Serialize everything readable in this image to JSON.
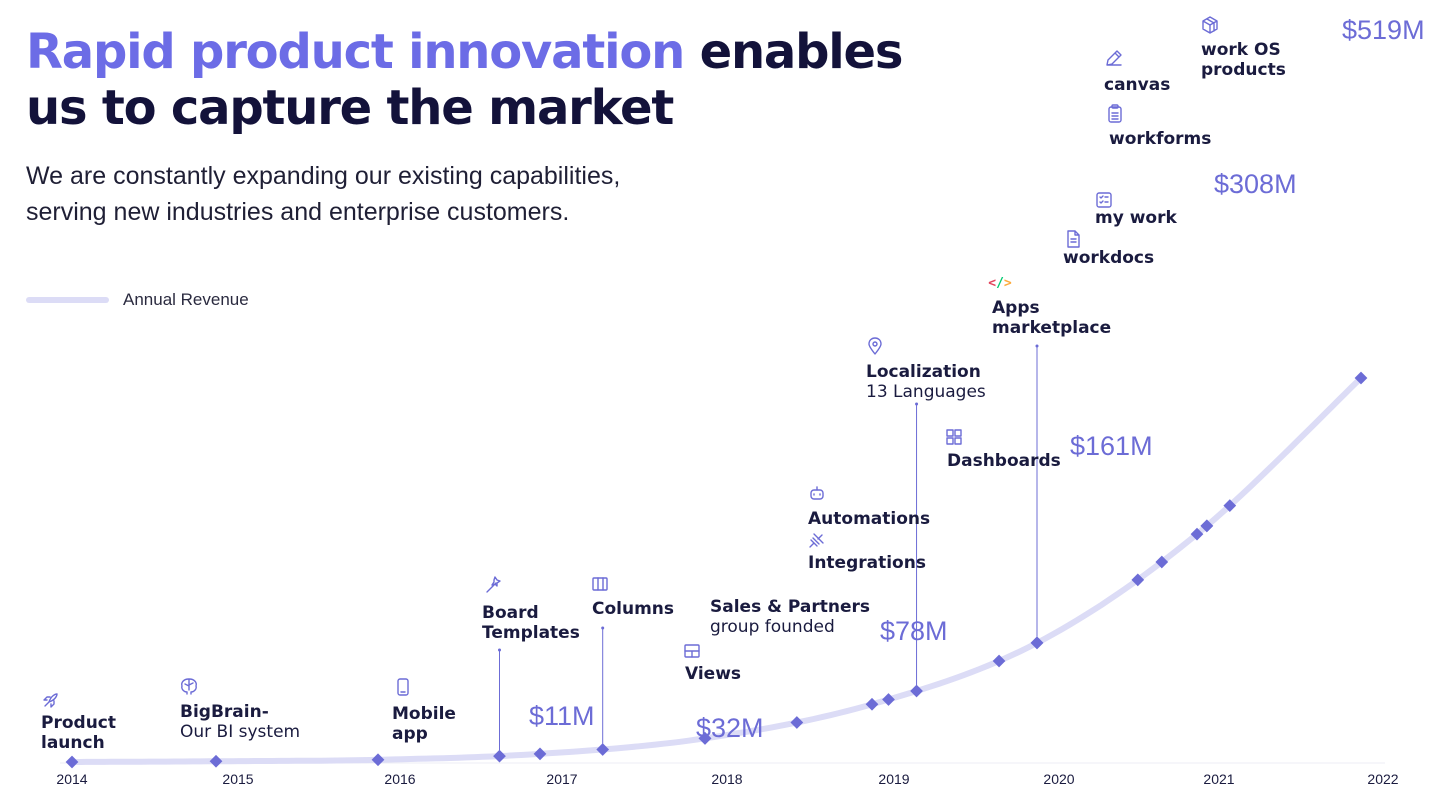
{
  "title": {
    "highlight": "Rapid product innovation",
    "rest_line1": "enables",
    "line2": "us to capture the market"
  },
  "subtitle": {
    "line1": "We are constantly expanding our existing capabilities,",
    "line2": "serving new industries and enterprise customers."
  },
  "legend": {
    "label": "Annual Revenue",
    "color": "#dcdcf6"
  },
  "colors": {
    "accent": "#6c6ce6",
    "marker": "#6c6cd6",
    "dark": "#13123a"
  },
  "chart_data": {
    "type": "line",
    "title": "Annual Revenue",
    "x": [
      2014,
      2015,
      2016,
      2017,
      2018,
      2019,
      2020,
      2021,
      2022
    ],
    "xlabel": "",
    "ylabel": "",
    "series": [
      {
        "name": "Annual Revenue",
        "values": [
          0,
          1,
          3,
          11,
          32,
          78,
          161,
          308,
          519
        ],
        "unit": "$M"
      }
    ],
    "data_labels": [
      {
        "year": 2017,
        "text": "$11M"
      },
      {
        "year": 2018,
        "text": "$32M"
      },
      {
        "year": 2019,
        "text": "$78M"
      },
      {
        "year": 2020,
        "text": "$161M"
      },
      {
        "year": 2021,
        "text": "$308M"
      },
      {
        "year": 2022,
        "text": "$519M"
      }
    ],
    "milestones": [
      {
        "id": "product-launch",
        "year": 2014.0,
        "icon": "rocket-icon",
        "lines": [
          {
            "text": "Product",
            "bold": true
          },
          {
            "text": "launch",
            "bold": true
          }
        ]
      },
      {
        "id": "bigbrain",
        "year": 2015.0,
        "icon": "brain-icon",
        "lines": [
          {
            "text": "BigBrain-",
            "bold": true
          },
          {
            "text": "Our BI system",
            "bold": false
          }
        ]
      },
      {
        "id": "mobile-app",
        "year": 2016.0,
        "icon": "mobile-icon",
        "lines": [
          {
            "text": "Mobile",
            "bold": true
          },
          {
            "text": "app",
            "bold": true
          }
        ]
      },
      {
        "id": "board-templates",
        "year": 2016.75,
        "icon": "magic-wand-icon",
        "lines": [
          {
            "text": "Board",
            "bold": true
          },
          {
            "text": "Templates",
            "bold": true
          }
        ]
      },
      {
        "id": "columns",
        "year": 2017.38,
        "icon": "columns-icon",
        "lines": [
          {
            "text": "Columns",
            "bold": true
          }
        ]
      },
      {
        "id": "views",
        "year": 2018.0,
        "icon": "views-icon",
        "lines": [
          {
            "text": "Views",
            "bold": true
          }
        ]
      },
      {
        "id": "sales-partners",
        "year": 2018.55,
        "icon": "",
        "lines": [
          {
            "text": "Sales & Partners",
            "bold": true
          },
          {
            "text": "group founded",
            "bold": false
          }
        ]
      },
      {
        "id": "automations-integrations",
        "year": 2019.1,
        "icon": "robot-icon",
        "lines": [
          {
            "text": "Automations",
            "bold": true
          },
          {
            "text": "Integrations",
            "bold": true
          }
        ]
      },
      {
        "id": "localization",
        "year": 2019.27,
        "icon": "location-pin-icon",
        "lines": [
          {
            "text": "Localization",
            "bold": true
          },
          {
            "text": "13 Languages",
            "bold": false
          }
        ]
      },
      {
        "id": "dashboards",
        "year": 2019.77,
        "icon": "dashboard-icon",
        "lines": [
          {
            "text": "Dashboards",
            "bold": true
          }
        ]
      },
      {
        "id": "apps-marketplace",
        "year": 2020.0,
        "icon": "code-icon",
        "lines": [
          {
            "text": "Apps",
            "bold": true
          },
          {
            "text": "marketplace",
            "bold": true
          }
        ]
      },
      {
        "id": "workdocs",
        "year": 2020.63,
        "icon": "document-icon",
        "lines": [
          {
            "text": "workdocs",
            "bold": true
          }
        ]
      },
      {
        "id": "my-work",
        "year": 2020.78,
        "icon": "checklist-icon",
        "lines": [
          {
            "text": "my work",
            "bold": true
          }
        ]
      },
      {
        "id": "workforms",
        "year": 2021.06,
        "icon": "clipboard-icon",
        "lines": [
          {
            "text": "workforms",
            "bold": true
          }
        ]
      },
      {
        "id": "canvas",
        "year": 2021.06,
        "icon": "pen-icon",
        "lines": [
          {
            "text": "canvas",
            "bold": true
          }
        ]
      },
      {
        "id": "work-os-products",
        "year": 2021.2,
        "icon": "cube-icon",
        "lines": [
          {
            "text": "work OS",
            "bold": true
          },
          {
            "text": "products",
            "bold": true
          }
        ]
      }
    ]
  }
}
